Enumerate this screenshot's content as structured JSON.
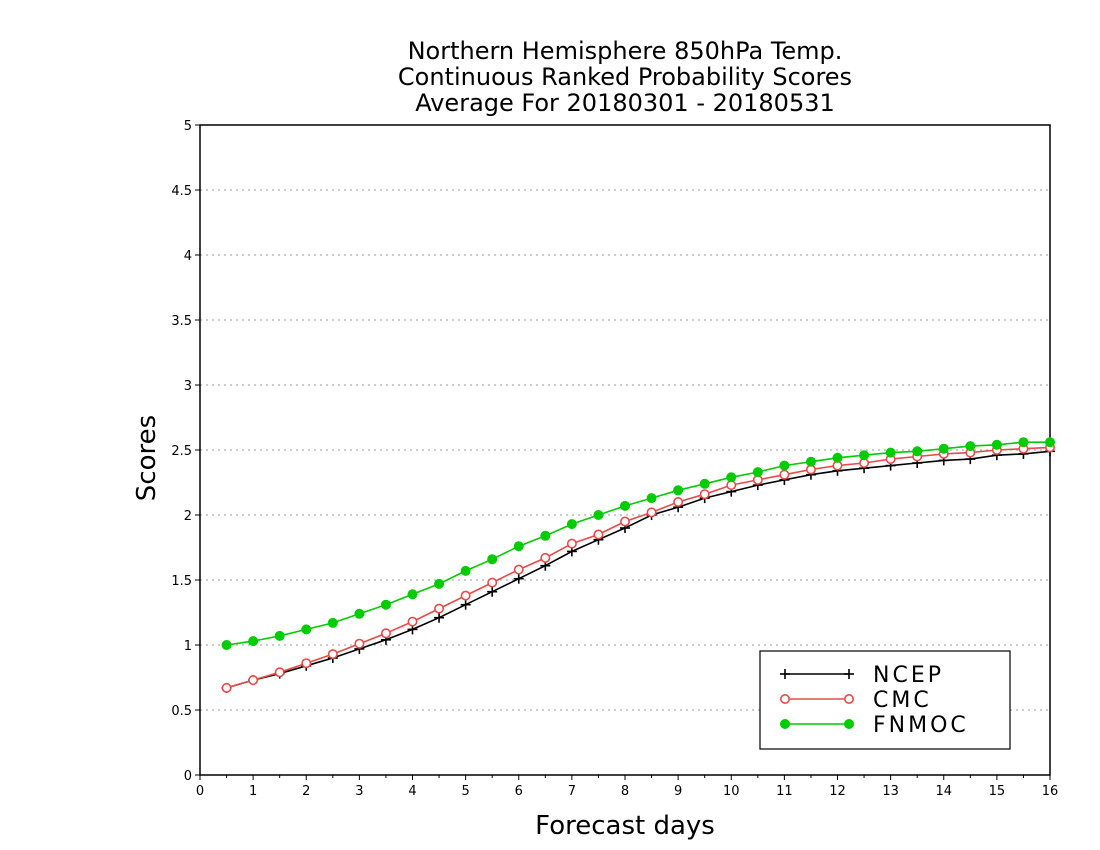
{
  "chart_data": {
    "type": "line",
    "title": [
      "Northern Hemisphere 850hPa Temp.",
      "Continuous Ranked Probability Scores",
      "Average For 20180301 - 20180531"
    ],
    "xlabel": "Forecast days",
    "ylabel": "Scores",
    "xlim": [
      0,
      16
    ],
    "ylim": [
      0,
      5
    ],
    "xticks": [
      "0",
      "1",
      "2",
      "3",
      "4",
      "5",
      "6",
      "7",
      "8",
      "9",
      "10",
      "11",
      "12",
      "13",
      "14",
      "15",
      "16"
    ],
    "yticks": [
      "0",
      "0.5",
      "1",
      "1.5",
      "2",
      "2.5",
      "3",
      "3.5",
      "4",
      "4.5",
      "5"
    ],
    "grid": true,
    "legend_position": "bottom-right",
    "x": [
      0.5,
      1,
      1.5,
      2,
      2.5,
      3,
      3.5,
      4,
      4.5,
      5,
      5.5,
      6,
      6.5,
      7,
      7.5,
      8,
      8.5,
      9,
      9.5,
      10,
      10.5,
      11,
      11.5,
      12,
      12.5,
      13,
      13.5,
      14,
      14.5,
      15,
      15.5,
      16
    ],
    "series": [
      {
        "name": "NCEP",
        "color": "#000000",
        "marker": "plus",
        "values": [
          0.67,
          0.73,
          0.78,
          0.84,
          0.9,
          0.97,
          1.04,
          1.12,
          1.21,
          1.31,
          1.41,
          1.51,
          1.61,
          1.72,
          1.81,
          1.9,
          2.0,
          2.06,
          2.13,
          2.18,
          2.23,
          2.27,
          2.31,
          2.34,
          2.36,
          2.38,
          2.4,
          2.42,
          2.43,
          2.46,
          2.47,
          2.49
        ]
      },
      {
        "name": "CMC",
        "color": "#e84a4a",
        "marker": "open-circle",
        "values": [
          0.67,
          0.73,
          0.79,
          0.86,
          0.93,
          1.01,
          1.09,
          1.18,
          1.28,
          1.38,
          1.48,
          1.58,
          1.67,
          1.78,
          1.85,
          1.95,
          2.02,
          2.1,
          2.16,
          2.23,
          2.27,
          2.31,
          2.35,
          2.38,
          2.4,
          2.43,
          2.45,
          2.47,
          2.48,
          2.5,
          2.51,
          2.52
        ]
      },
      {
        "name": "FNMOC",
        "color": "#00cc00",
        "marker": "filled-circle",
        "values": [
          1.0,
          1.03,
          1.07,
          1.12,
          1.17,
          1.24,
          1.31,
          1.39,
          1.47,
          1.57,
          1.66,
          1.76,
          1.84,
          1.93,
          2.0,
          2.07,
          2.13,
          2.19,
          2.24,
          2.29,
          2.33,
          2.38,
          2.41,
          2.44,
          2.46,
          2.48,
          2.49,
          2.51,
          2.53,
          2.54,
          2.56,
          2.56
        ]
      }
    ]
  }
}
